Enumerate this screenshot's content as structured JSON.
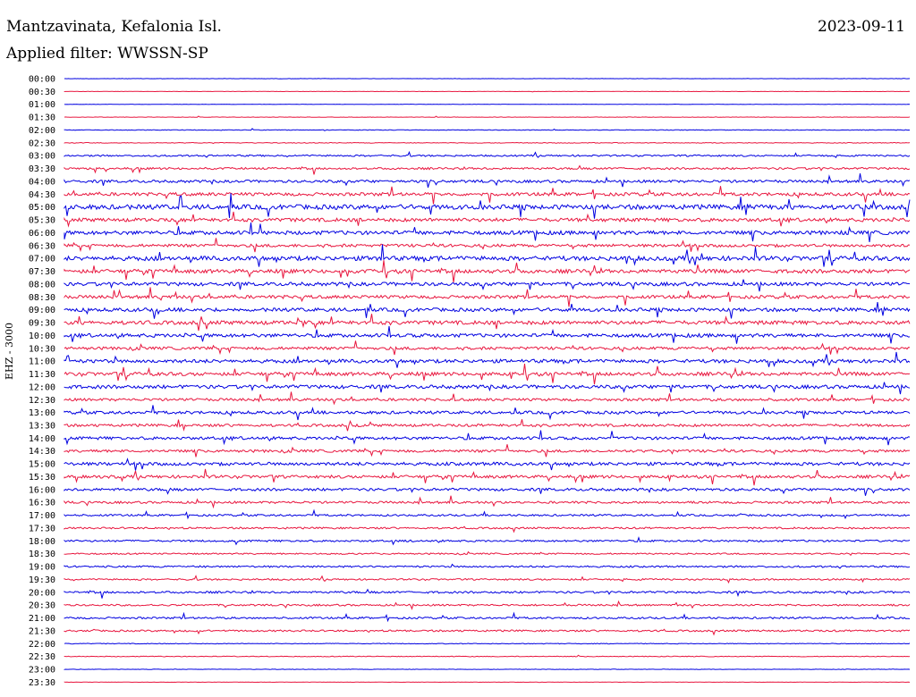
{
  "header": {
    "station": "Mantzavinata, Kefalonia Isl.",
    "date": "2023-09-11",
    "filter": "Applied filter: WWSSN-SP"
  },
  "chart_data": {
    "type": "line",
    "title": "Mantzavinata, Kefalonia Isl.",
    "ylabel": "EHZ - 3000",
    "legend": "none",
    "grid": false,
    "colors": {
      "even_trace": "#0000e0",
      "odd_trace": "#e8173f",
      "text": "#000000"
    },
    "rows": [
      {
        "time": "00:00",
        "activity": 0.05
      },
      {
        "time": "00:30",
        "activity": 0.05
      },
      {
        "time": "01:00",
        "activity": 0.06
      },
      {
        "time": "01:30",
        "activity": 0.07
      },
      {
        "time": "02:00",
        "activity": 0.1
      },
      {
        "time": "02:30",
        "activity": 0.12
      },
      {
        "time": "03:00",
        "activity": 0.28
      },
      {
        "time": "03:30",
        "activity": 0.35
      },
      {
        "time": "04:00",
        "activity": 0.45
      },
      {
        "time": "04:30",
        "activity": 0.55
      },
      {
        "time": "05:00",
        "activity": 0.8
      },
      {
        "time": "05:30",
        "activity": 0.6
      },
      {
        "time": "06:00",
        "activity": 0.65
      },
      {
        "time": "06:30",
        "activity": 0.5
      },
      {
        "time": "07:00",
        "activity": 0.75
      },
      {
        "time": "07:30",
        "activity": 0.65
      },
      {
        "time": "08:00",
        "activity": 0.6
      },
      {
        "time": "08:30",
        "activity": 0.55
      },
      {
        "time": "09:00",
        "activity": 0.6
      },
      {
        "time": "09:30",
        "activity": 0.65
      },
      {
        "time": "10:00",
        "activity": 0.6
      },
      {
        "time": "10:30",
        "activity": 0.5
      },
      {
        "time": "11:00",
        "activity": 0.6
      },
      {
        "time": "11:30",
        "activity": 0.6
      },
      {
        "time": "12:00",
        "activity": 0.6
      },
      {
        "time": "12:30",
        "activity": 0.45
      },
      {
        "time": "13:00",
        "activity": 0.5
      },
      {
        "time": "13:30",
        "activity": 0.45
      },
      {
        "time": "14:00",
        "activity": 0.5
      },
      {
        "time": "14:30",
        "activity": 0.45
      },
      {
        "time": "15:00",
        "activity": 0.55
      },
      {
        "time": "15:30",
        "activity": 0.5
      },
      {
        "time": "16:00",
        "activity": 0.45
      },
      {
        "time": "16:30",
        "activity": 0.38
      },
      {
        "time": "17:00",
        "activity": 0.32
      },
      {
        "time": "17:30",
        "activity": 0.3
      },
      {
        "time": "18:00",
        "activity": 0.32
      },
      {
        "time": "18:30",
        "activity": 0.25
      },
      {
        "time": "19:00",
        "activity": 0.3
      },
      {
        "time": "19:30",
        "activity": 0.28
      },
      {
        "time": "20:00",
        "activity": 0.35
      },
      {
        "time": "20:30",
        "activity": 0.3
      },
      {
        "time": "21:00",
        "activity": 0.32
      },
      {
        "time": "21:30",
        "activity": 0.3
      },
      {
        "time": "22:00",
        "activity": 0.12
      },
      {
        "time": "22:30",
        "activity": 0.12
      },
      {
        "time": "23:00",
        "activity": 0.06
      },
      {
        "time": "23:30",
        "activity": 0.05
      }
    ]
  }
}
